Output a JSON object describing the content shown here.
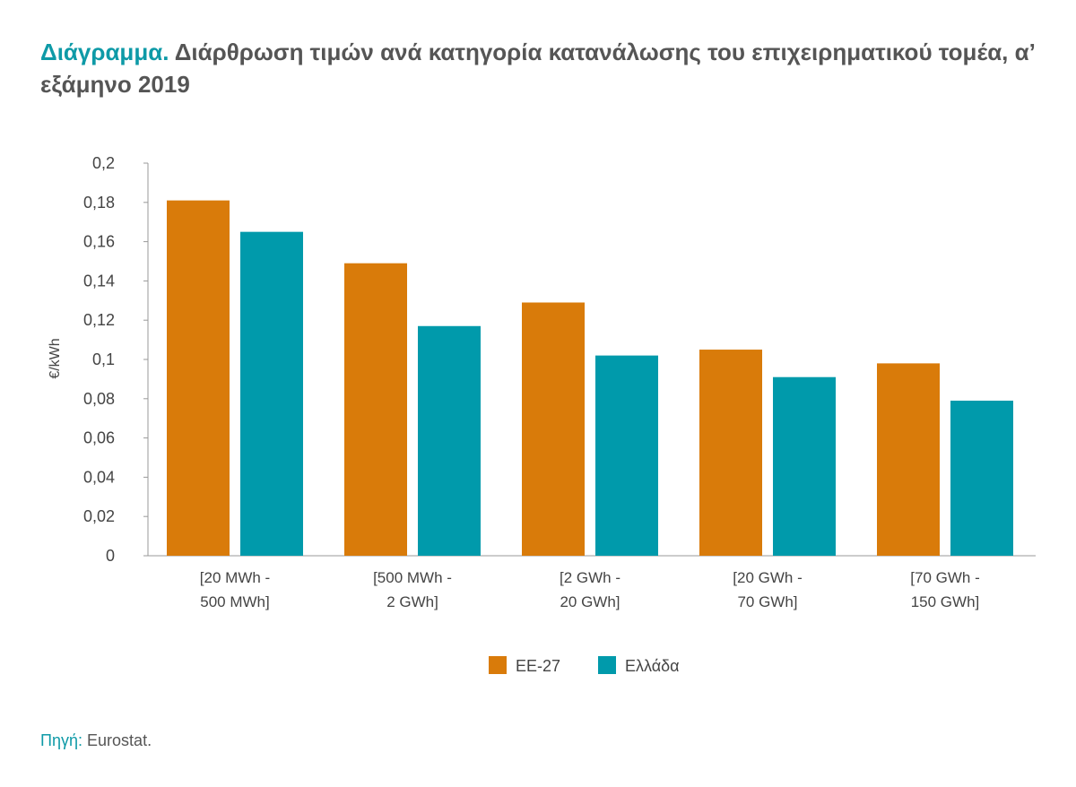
{
  "title": {
    "lead": "Διάγραμμα.",
    "text": " Διάρθρωση τιμών ανά κατηγορία κατανάλωσης του επιχειρηματικού τομέα, α’ εξάμηνο 2019"
  },
  "source": {
    "lead": "Πηγή:",
    "text": " Eurostat."
  },
  "chart_data": {
    "type": "bar",
    "title": "Διάρθρωση τιμών ανά κατηγορία κατανάλωσης του επιχειρηματικού τομέα, α’ εξάμηνο 2019",
    "ylabel": "€/kWh",
    "xlabel": "",
    "ylim": [
      0,
      0.2
    ],
    "yticks": [
      "0",
      "0,02",
      "0,04",
      "0,06",
      "0,08",
      "0,1",
      "0,12",
      "0,14",
      "0,16",
      "0,18",
      "0,2"
    ],
    "categories": [
      [
        "[20 MWh -",
        "500 MWh]"
      ],
      [
        "[500 MWh -",
        "2 GWh]"
      ],
      [
        "[2 GWh -",
        "20 GWh]"
      ],
      [
        "[20 GWh -",
        "70 GWh]"
      ],
      [
        "[70 GWh -",
        "150 GWh]"
      ]
    ],
    "series": [
      {
        "name": "ΕΕ-27",
        "color": "#d97b0a",
        "values": [
          0.181,
          0.149,
          0.129,
          0.105,
          0.098
        ]
      },
      {
        "name": "Ελλάδα",
        "color": "#009aab",
        "values": [
          0.165,
          0.117,
          0.102,
          0.091,
          0.079
        ]
      }
    ],
    "grid": false,
    "legend": "bottom"
  }
}
